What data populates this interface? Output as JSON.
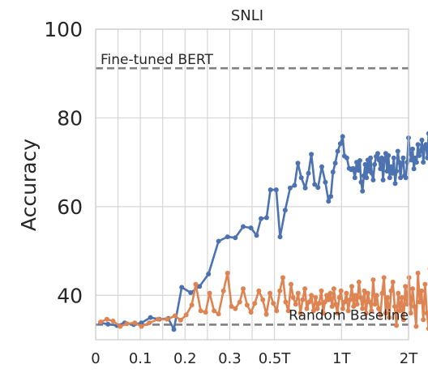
{
  "chart_data": {
    "type": "line",
    "title": "SNLI",
    "xlabel": "",
    "ylabel": "Accuracy",
    "ylim": [
      30,
      100
    ],
    "y_ticks": [
      40,
      60,
      80,
      100
    ],
    "x_ticks": [
      {
        "label": "0",
        "pos": 0
      },
      {
        "label": "0.1",
        "pos": 2
      },
      {
        "label": "0.2",
        "pos": 4
      },
      {
        "label": "0.3",
        "pos": 6
      },
      {
        "label": "0.5T",
        "pos": 8
      },
      {
        "label": "1T",
        "pos": 11
      },
      {
        "label": "2T",
        "pos": 14
      }
    ],
    "x_minor_gridlines": [
      1,
      3,
      5,
      7
    ],
    "x_range": [
      0,
      14
    ],
    "grid": true,
    "legend": "none",
    "reference_lines": [
      {
        "label": "Fine-tuned BERT",
        "y": 91.2,
        "color": "#808080"
      },
      {
        "label": "Random Baseline",
        "y": 33.4,
        "color": "#808080"
      }
    ],
    "series": [
      {
        "color": "#4c72b0",
        "points": [
          [
            0.22,
            33.8
          ],
          [
            0.55,
            33.5
          ],
          [
            0.95,
            33.2
          ],
          [
            1.3,
            33.8
          ],
          [
            1.7,
            33.4
          ],
          [
            2.05,
            33.8
          ],
          [
            2.45,
            35.0
          ],
          [
            2.85,
            34.6
          ],
          [
            3.25,
            34.8
          ],
          [
            3.5,
            32.3
          ],
          [
            3.85,
            41.8
          ],
          [
            4.25,
            40.6
          ],
          [
            4.65,
            42.0
          ],
          [
            5.05,
            44.8
          ],
          [
            5.5,
            52.2
          ],
          [
            5.9,
            53.2
          ],
          [
            6.25,
            53.0
          ],
          [
            6.6,
            55.5
          ],
          [
            6.95,
            55.2
          ],
          [
            7.2,
            53.5
          ],
          [
            7.4,
            57.3
          ],
          [
            7.65,
            57.5
          ],
          [
            7.82,
            63.8
          ],
          [
            8.08,
            63.8
          ],
          [
            8.25,
            53.2
          ],
          [
            8.48,
            59.2
          ],
          [
            8.7,
            64.2
          ],
          [
            8.9,
            64.8
          ],
          [
            9.05,
            69.8
          ],
          [
            9.2,
            66.5
          ],
          [
            9.38,
            64.2
          ],
          [
            9.52,
            67.5
          ],
          [
            9.65,
            71.8
          ],
          [
            9.8,
            65.0
          ],
          [
            9.95,
            64.3
          ],
          [
            10.12,
            69.0
          ],
          [
            10.28,
            65.5
          ],
          [
            10.42,
            61.2
          ],
          [
            10.52,
            62.3
          ],
          [
            10.62,
            67.8
          ],
          [
            10.72,
            69.8
          ],
          [
            10.83,
            72.5
          ],
          [
            10.95,
            74.2
          ],
          [
            11.05,
            75.8
          ],
          [
            11.13,
            71.4
          ],
          [
            11.24,
            71.0
          ],
          [
            11.34,
            68.6
          ],
          [
            11.44,
            68.3
          ],
          [
            11.52,
            68.6
          ],
          [
            11.6,
            66.5
          ],
          [
            11.68,
            70.0
          ],
          [
            11.75,
            68.2
          ],
          [
            11.82,
            70.4
          ],
          [
            11.88,
            65.5
          ],
          [
            11.94,
            63.5
          ],
          [
            12.0,
            67.0
          ],
          [
            12.06,
            69.5
          ],
          [
            12.12,
            66.5
          ],
          [
            12.18,
            70.5
          ],
          [
            12.24,
            68.0
          ],
          [
            12.3,
            71.0
          ],
          [
            12.36,
            67.5
          ],
          [
            12.42,
            66.0
          ],
          [
            12.48,
            69.5
          ],
          [
            12.55,
            71.3
          ],
          [
            12.62,
            72.0
          ],
          [
            12.68,
            70.5
          ],
          [
            12.74,
            68.5
          ],
          [
            12.8,
            71.0
          ],
          [
            12.86,
            66.0
          ],
          [
            12.92,
            70.5
          ],
          [
            12.98,
            72.0
          ],
          [
            13.04,
            68.0
          ],
          [
            13.1,
            71.5
          ],
          [
            13.16,
            66.5
          ],
          [
            13.22,
            69.0
          ],
          [
            13.28,
            67.5
          ],
          [
            13.34,
            71.0
          ],
          [
            13.4,
            65.2
          ],
          [
            13.46,
            68.0
          ],
          [
            13.52,
            72.5
          ],
          [
            13.58,
            70.0
          ],
          [
            13.64,
            66.5
          ],
          [
            13.7,
            69.5
          ],
          [
            13.76,
            71.0
          ],
          [
            13.82,
            67.0
          ],
          [
            13.88,
            66.5
          ],
          [
            13.94,
            70.0
          ],
          [
            14.0,
            75.5
          ],
          [
            14.06,
            72.0
          ],
          [
            14.12,
            70.5
          ],
          [
            14.18,
            73.0
          ],
          [
            14.24,
            68.5
          ],
          [
            14.3,
            71.0
          ],
          [
            14.36,
            70.0
          ],
          [
            14.42,
            74.0
          ],
          [
            14.48,
            71.5
          ],
          [
            14.54,
            72.5
          ],
          [
            14.6,
            75.0
          ],
          [
            14.66,
            70.0
          ],
          [
            14.72,
            73.5
          ],
          [
            14.78,
            74.0
          ],
          [
            14.84,
            71.0
          ],
          [
            14.9,
            76.5
          ],
          [
            14.95,
            76.0
          ],
          [
            15.0,
            75.5
          ]
        ]
      },
      {
        "color": "#dd8452",
        "points": [
          [
            0.22,
            34.0
          ],
          [
            0.5,
            34.6
          ],
          [
            0.78,
            34.2
          ],
          [
            1.1,
            33.0
          ],
          [
            1.4,
            33.6
          ],
          [
            1.75,
            33.8
          ],
          [
            2.05,
            33.0
          ],
          [
            2.4,
            33.8
          ],
          [
            2.8,
            34.6
          ],
          [
            3.2,
            34.6
          ],
          [
            3.55,
            35.4
          ],
          [
            3.8,
            34.4
          ],
          [
            4.05,
            35.6
          ],
          [
            4.3,
            37.8
          ],
          [
            4.48,
            42.5
          ],
          [
            4.7,
            36.5
          ],
          [
            4.92,
            36.2
          ],
          [
            5.1,
            40.5
          ],
          [
            5.3,
            36.5
          ],
          [
            5.5,
            35.8
          ],
          [
            5.72,
            41.0
          ],
          [
            5.9,
            45.0
          ],
          [
            6.08,
            37.5
          ],
          [
            6.25,
            37.0
          ],
          [
            6.45,
            38.5
          ],
          [
            6.6,
            41.5
          ],
          [
            6.78,
            37.8
          ],
          [
            6.95,
            36.2
          ],
          [
            7.12,
            38.2
          ],
          [
            7.3,
            41.0
          ],
          [
            7.48,
            39.0
          ],
          [
            7.64,
            35.7
          ],
          [
            7.8,
            40.5
          ],
          [
            7.95,
            38.2
          ],
          [
            8.1,
            36.5
          ],
          [
            8.24,
            41.0
          ],
          [
            8.38,
            44.0
          ],
          [
            8.5,
            38.5
          ],
          [
            8.62,
            36.5
          ],
          [
            8.74,
            42.5
          ],
          [
            8.84,
            39.5
          ],
          [
            8.95,
            38.0
          ],
          [
            9.06,
            40.5
          ],
          [
            9.16,
            36.0
          ],
          [
            9.26,
            39.0
          ],
          [
            9.36,
            41.5
          ],
          [
            9.45,
            37.0
          ],
          [
            9.55,
            38.5
          ],
          [
            9.65,
            40.0
          ],
          [
            9.75,
            36.5
          ],
          [
            9.84,
            39.5
          ],
          [
            9.92,
            37.0
          ],
          [
            10.0,
            38.2
          ],
          [
            10.1,
            41.0
          ],
          [
            10.18,
            36.0
          ],
          [
            10.26,
            38.5
          ],
          [
            10.34,
            40.0
          ],
          [
            10.42,
            39.0
          ],
          [
            10.5,
            40.5
          ],
          [
            10.58,
            37.5
          ],
          [
            10.66,
            41.5
          ],
          [
            10.74,
            38.0
          ],
          [
            10.82,
            36.0
          ],
          [
            10.9,
            39.5
          ],
          [
            10.98,
            41.0
          ],
          [
            11.06,
            37.0
          ],
          [
            11.14,
            38.5
          ],
          [
            11.22,
            40.5
          ],
          [
            11.3,
            36.5
          ],
          [
            11.38,
            39.0
          ],
          [
            11.46,
            42.0
          ],
          [
            11.54,
            37.5
          ],
          [
            11.62,
            40.0
          ],
          [
            11.7,
            38.0
          ],
          [
            11.78,
            43.0
          ],
          [
            11.86,
            39.5
          ],
          [
            11.94,
            37.0
          ],
          [
            12.02,
            41.0
          ],
          [
            12.1,
            36.0
          ],
          [
            12.18,
            40.5
          ],
          [
            12.26,
            38.5
          ],
          [
            12.34,
            36.5
          ],
          [
            12.42,
            43.5
          ],
          [
            12.5,
            38.0
          ],
          [
            12.58,
            40.0
          ],
          [
            12.66,
            37.0
          ],
          [
            12.74,
            35.5
          ],
          [
            12.82,
            40.5
          ],
          [
            12.9,
            44.0
          ],
          [
            12.98,
            36.0
          ],
          [
            13.06,
            39.5
          ],
          [
            13.14,
            35.0
          ],
          [
            13.22,
            41.0
          ],
          [
            13.3,
            43.0
          ],
          [
            13.38,
            37.5
          ],
          [
            13.46,
            33.2
          ],
          [
            13.54,
            40.5
          ],
          [
            13.62,
            36.5
          ],
          [
            13.7,
            39.5
          ],
          [
            13.78,
            34.5
          ],
          [
            13.86,
            42.0
          ],
          [
            13.94,
            38.0
          ],
          [
            14.02,
            44.0
          ],
          [
            14.1,
            36.0
          ],
          [
            14.18,
            41.5
          ],
          [
            14.26,
            37.5
          ],
          [
            14.34,
            33.0
          ],
          [
            14.42,
            45.0
          ],
          [
            14.5,
            38.5
          ],
          [
            14.58,
            41.0
          ],
          [
            14.66,
            34.5
          ],
          [
            14.74,
            42.5
          ],
          [
            14.82,
            36.0
          ],
          [
            14.9,
            32.5
          ],
          [
            14.96,
            46.0
          ],
          [
            15.0,
            49.5
          ]
        ]
      }
    ]
  }
}
